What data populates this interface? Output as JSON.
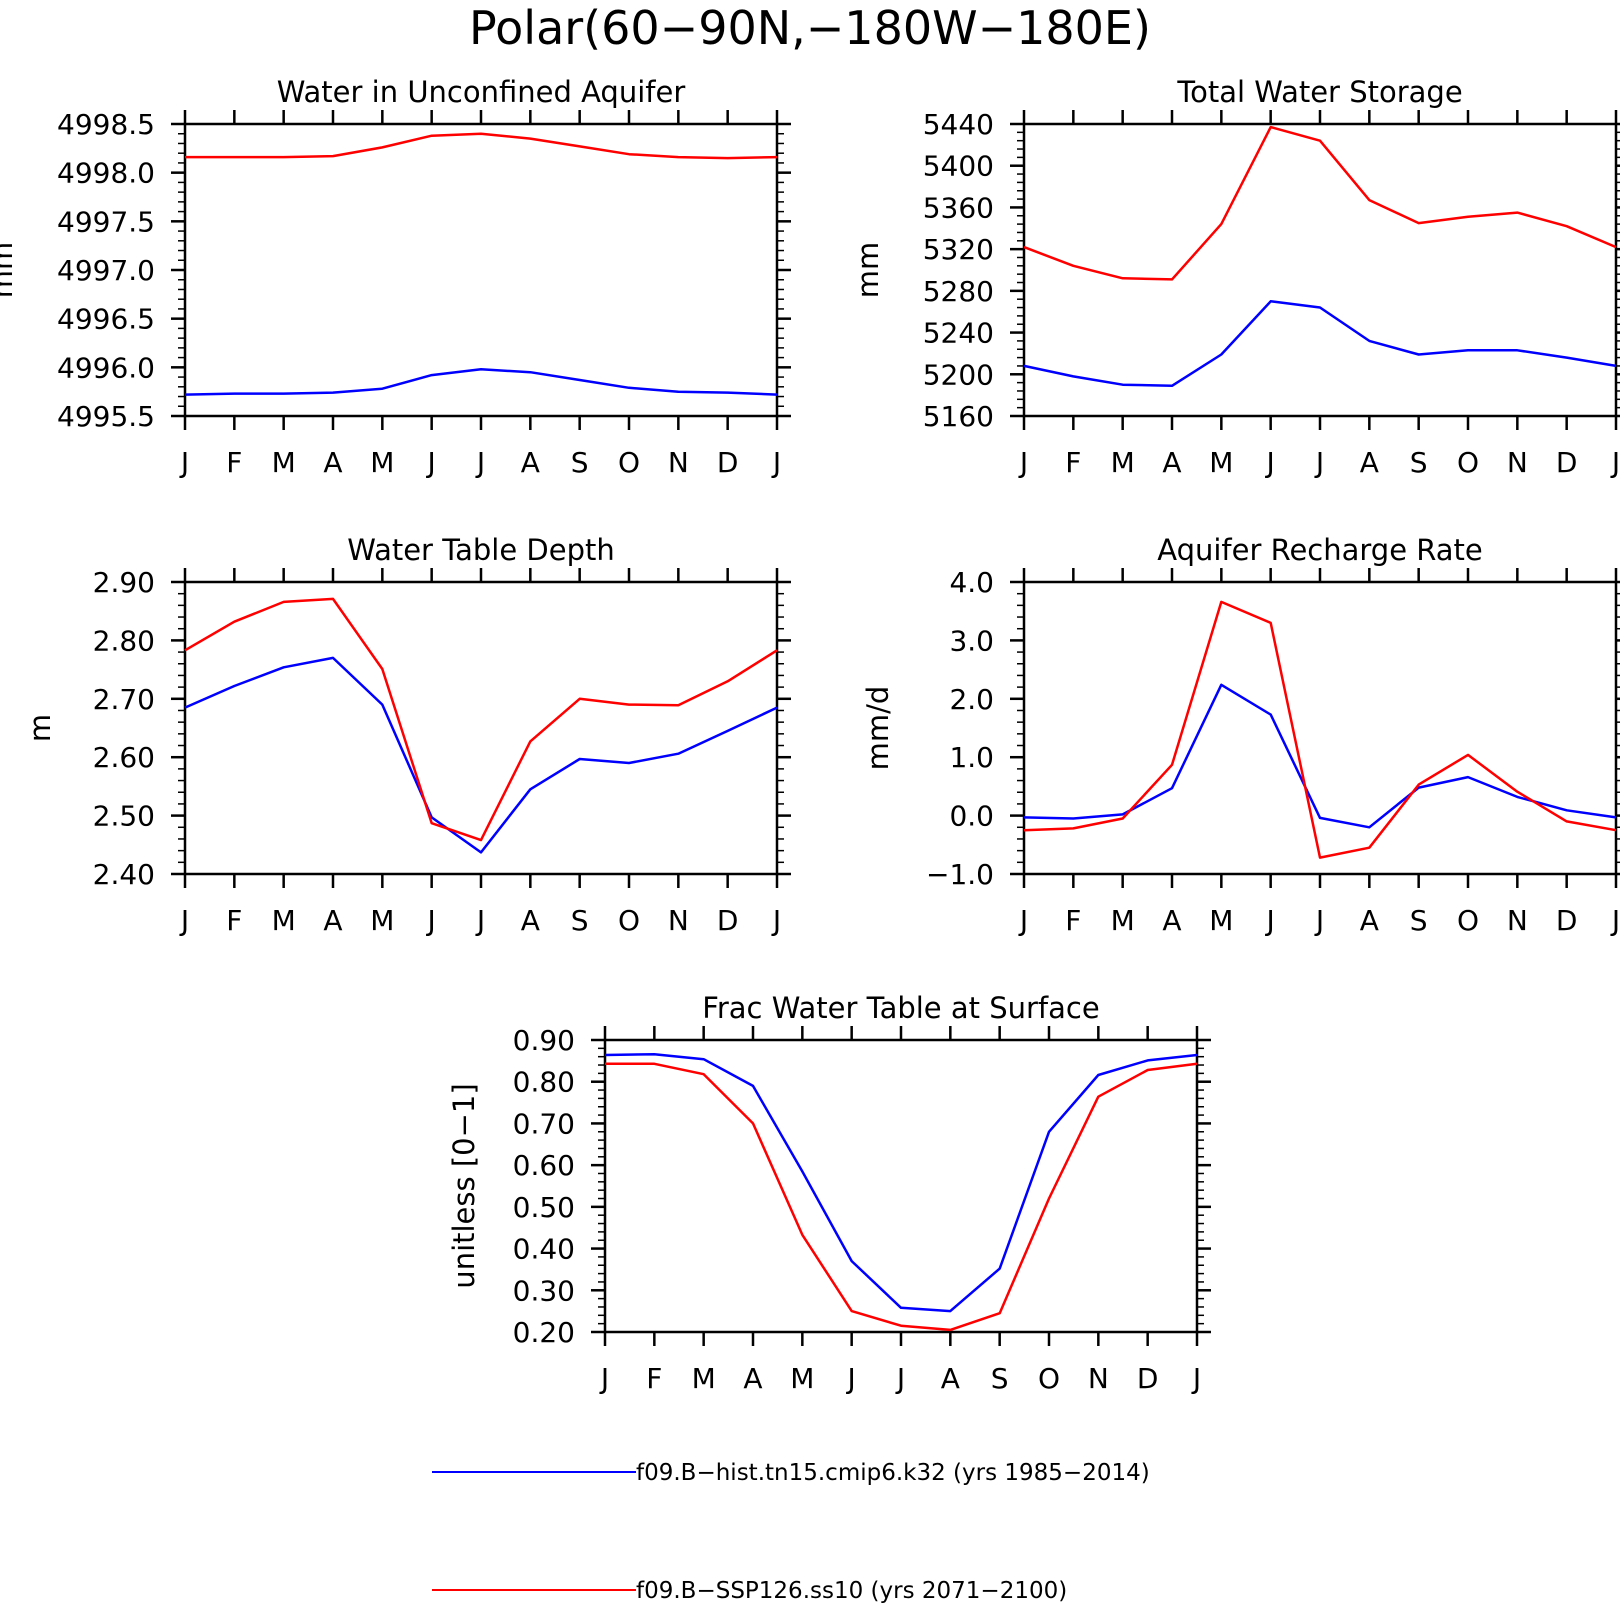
{
  "figure": {
    "title": "Polar(60−90N,−180W−180E)"
  },
  "legend": [
    {
      "label": "f09.B−hist.tn15.cmip6.k32 (yrs 1985−2014)",
      "color": "#0000ff"
    },
    {
      "label": "f09.B−SSP126.ss10 (yrs 2071−2100)",
      "color": "#ff0000"
    }
  ],
  "chart_data": [
    {
      "type": "line",
      "title": "Water in Unconfined Aquifer",
      "ylabel": "mm",
      "ylim": [
        4995.5,
        4998.5
      ],
      "yticks": [
        4995.5,
        4996.0,
        4996.5,
        4997.0,
        4997.5,
        4998.0,
        4998.5
      ],
      "ytick_labels": [
        "4995.5",
        "4996.0",
        "4996.5",
        "4997.0",
        "4997.5",
        "4998.0",
        "4998.5"
      ],
      "x": [
        "J",
        "F",
        "M",
        "A",
        "M",
        "J",
        "J",
        "A",
        "S",
        "O",
        "N",
        "D",
        "J"
      ],
      "series": [
        {
          "name": "f09.B−hist.tn15.cmip6.k32 (yrs 1985−2014)",
          "color": "#0000ff",
          "values": [
            4995.72,
            4995.73,
            4995.73,
            4995.74,
            4995.78,
            4995.92,
            4995.98,
            4995.95,
            4995.87,
            4995.79,
            4995.75,
            4995.74,
            4995.72
          ]
        },
        {
          "name": "f09.B−SSP126.ss10 (yrs 2071−2100)",
          "color": "#ff0000",
          "values": [
            4998.16,
            4998.16,
            4998.16,
            4998.17,
            4998.26,
            4998.38,
            4998.4,
            4998.35,
            4998.27,
            4998.19,
            4998.16,
            4998.15,
            4998.16
          ]
        }
      ]
    },
    {
      "type": "line",
      "title": "Total Water Storage",
      "ylabel": "mm",
      "ylim": [
        5160,
        5440
      ],
      "yticks": [
        5160,
        5200,
        5240,
        5280,
        5320,
        5360,
        5400,
        5440
      ],
      "ytick_labels": [
        "5160",
        "5200",
        "5240",
        "5280",
        "5320",
        "5360",
        "5400",
        "5440"
      ],
      "x": [
        "J",
        "F",
        "M",
        "A",
        "M",
        "J",
        "J",
        "A",
        "S",
        "O",
        "N",
        "D",
        "J"
      ],
      "series": [
        {
          "name": "f09.B−hist.tn15.cmip6.k32 (yrs 1985−2014)",
          "color": "#0000ff",
          "values": [
            5208,
            5198,
            5190,
            5189,
            5219,
            5270,
            5264,
            5232,
            5219,
            5223,
            5223,
            5216,
            5208
          ]
        },
        {
          "name": "f09.B−SSP126.ss10 (yrs 2071−2100)",
          "color": "#ff0000",
          "values": [
            5322,
            5304,
            5292,
            5291,
            5344,
            5437,
            5424,
            5367,
            5345,
            5351,
            5355,
            5342,
            5322
          ]
        }
      ]
    },
    {
      "type": "line",
      "title": "Water Table Depth",
      "ylabel": "m",
      "ylim": [
        2.4,
        2.9
      ],
      "yticks": [
        2.4,
        2.5,
        2.6,
        2.7,
        2.8,
        2.9
      ],
      "ytick_labels": [
        "2.40",
        "2.50",
        "2.60",
        "2.70",
        "2.80",
        "2.90"
      ],
      "x": [
        "J",
        "F",
        "M",
        "A",
        "M",
        "J",
        "J",
        "A",
        "S",
        "O",
        "N",
        "D",
        "J"
      ],
      "series": [
        {
          "name": "f09.B−hist.tn15.cmip6.k32 (yrs 1985−2014)",
          "color": "#0000ff",
          "values": [
            2.685,
            2.722,
            2.754,
            2.77,
            2.69,
            2.497,
            2.437,
            2.545,
            2.597,
            2.59,
            2.606,
            2.645,
            2.685
          ]
        },
        {
          "name": "f09.B−SSP126.ss10 (yrs 2071−2100)",
          "color": "#ff0000",
          "values": [
            2.783,
            2.832,
            2.866,
            2.871,
            2.751,
            2.487,
            2.458,
            2.627,
            2.7,
            2.69,
            2.689,
            2.73,
            2.783
          ]
        }
      ]
    },
    {
      "type": "line",
      "title": "Aquifer Recharge Rate",
      "ylabel": "mm/d",
      "ylim": [
        -1.0,
        4.0
      ],
      "yticks": [
        -1.0,
        0.0,
        1.0,
        2.0,
        3.0,
        4.0
      ],
      "ytick_labels": [
        "−1.0",
        "0.0",
        "1.0",
        "2.0",
        "3.0",
        "4.0"
      ],
      "x": [
        "J",
        "F",
        "M",
        "A",
        "M",
        "J",
        "J",
        "A",
        "S",
        "O",
        "N",
        "D",
        "J"
      ],
      "series": [
        {
          "name": "f09.B−hist.tn15.cmip6.k32 (yrs 1985−2014)",
          "color": "#0000ff",
          "values": [
            -0.03,
            -0.05,
            0.02,
            0.47,
            2.24,
            1.73,
            -0.04,
            -0.2,
            0.48,
            0.66,
            0.32,
            0.09,
            -0.03
          ]
        },
        {
          "name": "f09.B−SSP126.ss10 (yrs 2071−2100)",
          "color": "#ff0000",
          "values": [
            -0.25,
            -0.22,
            -0.05,
            0.87,
            3.66,
            3.3,
            -0.72,
            -0.55,
            0.53,
            1.04,
            0.41,
            -0.1,
            -0.25
          ]
        }
      ]
    },
    {
      "type": "line",
      "title": "Frac Water Table at Surface",
      "ylabel": "unitless [0−1]",
      "ylim": [
        0.2,
        0.9
      ],
      "yticks": [
        0.2,
        0.3,
        0.4,
        0.5,
        0.6,
        0.7,
        0.8,
        0.9
      ],
      "ytick_labels": [
        "0.20",
        "0.30",
        "0.40",
        "0.50",
        "0.60",
        "0.70",
        "0.80",
        "0.90"
      ],
      "x": [
        "J",
        "F",
        "M",
        "A",
        "M",
        "J",
        "J",
        "A",
        "S",
        "O",
        "N",
        "D",
        "J"
      ],
      "series": [
        {
          "name": "f09.B−hist.tn15.cmip6.k32 (yrs 1985−2014)",
          "color": "#0000ff",
          "values": [
            0.864,
            0.866,
            0.854,
            0.79,
            0.585,
            0.37,
            0.258,
            0.25,
            0.352,
            0.68,
            0.816,
            0.851,
            0.864
          ]
        },
        {
          "name": "f09.B−SSP126.ss10 (yrs 2071−2100)",
          "color": "#ff0000",
          "values": [
            0.843,
            0.843,
            0.818,
            0.7,
            0.433,
            0.25,
            0.215,
            0.205,
            0.245,
            0.52,
            0.764,
            0.828,
            0.843
          ]
        }
      ]
    }
  ]
}
